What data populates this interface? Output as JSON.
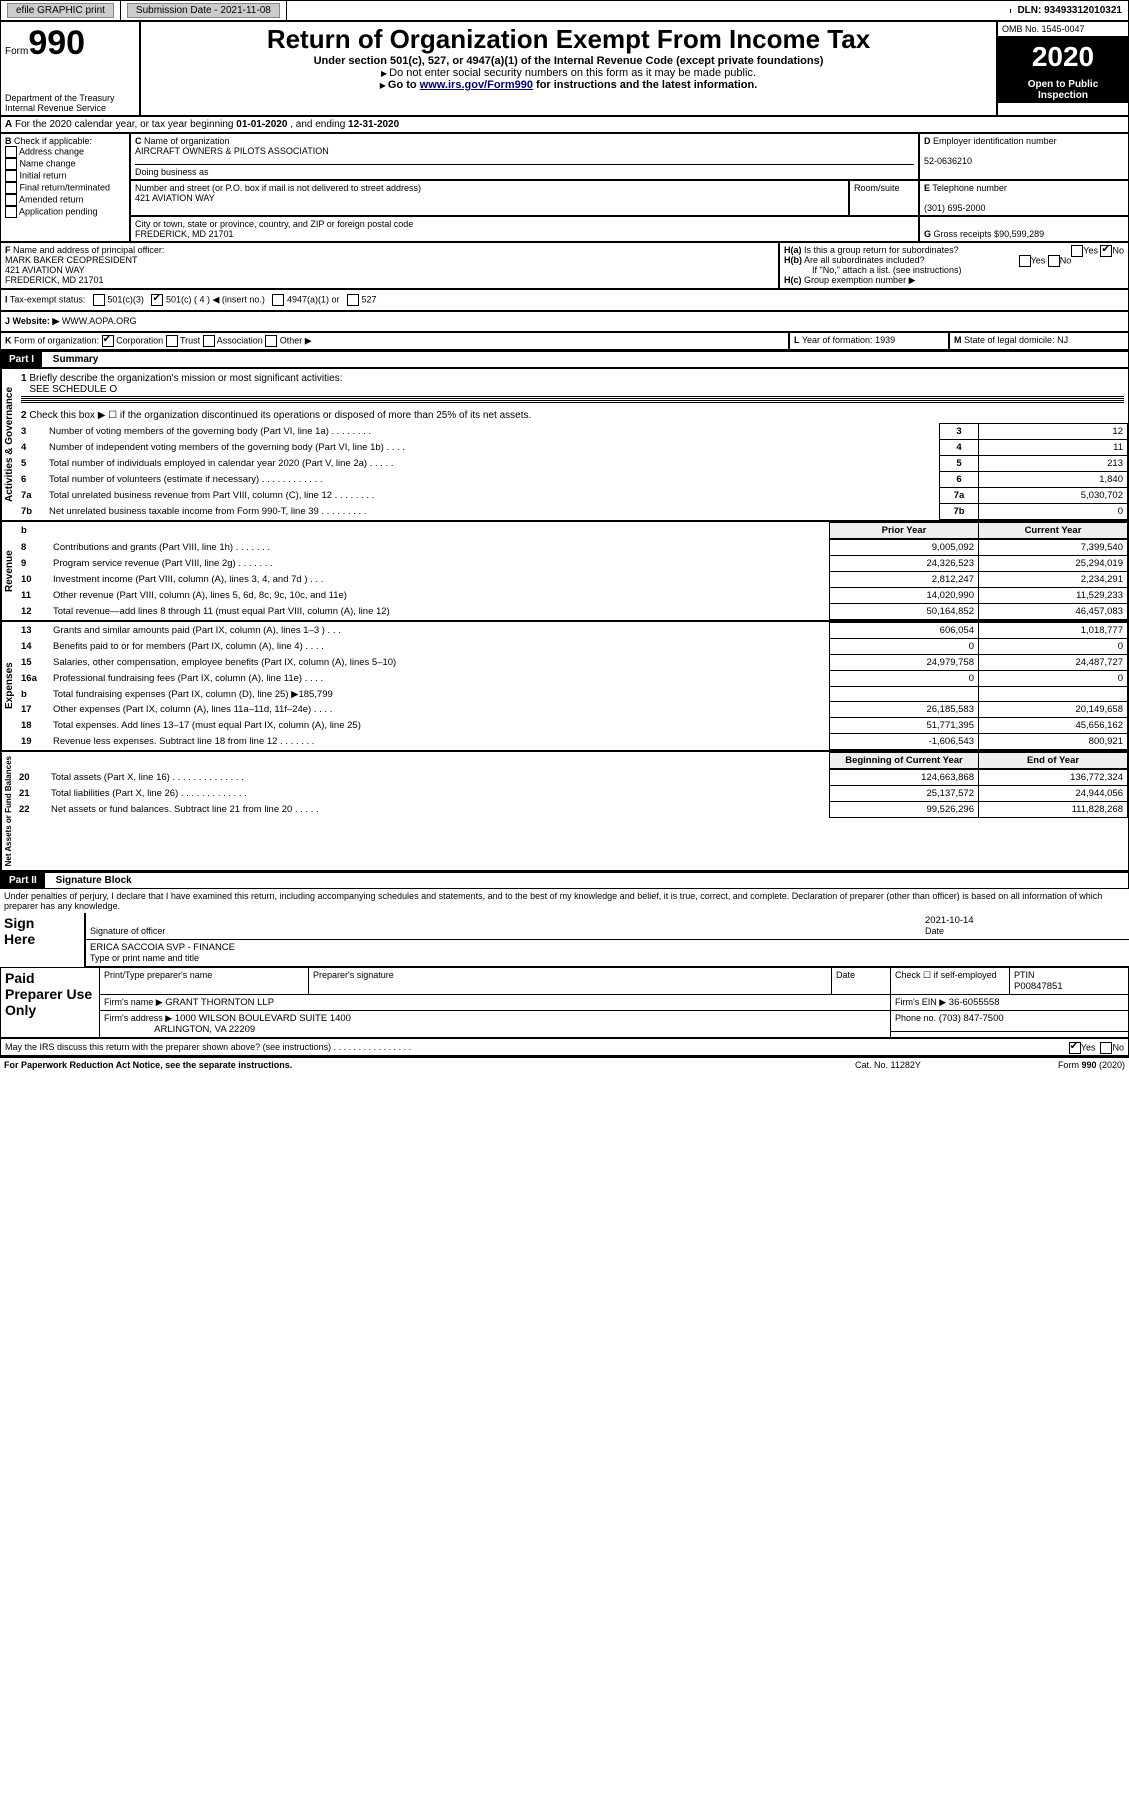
{
  "top": {
    "efile": "efile GRAPHIC print",
    "submission_label": "Submission Date - ",
    "submission_date": "2021-11-08",
    "dln_label": "DLN: ",
    "dln": "93493312010321"
  },
  "header": {
    "form_label": "Form",
    "form_no": "990",
    "dept": "Department of the Treasury\nInternal Revenue Service",
    "title": "Return of Organization Exempt From Income Tax",
    "subtitle": "Under section 501(c), 527, or 4947(a)(1) of the Internal Revenue Code (except private foundations)",
    "note1": "Do not enter social security numbers on this form as it may be made public.",
    "note2_pre": "Go to ",
    "note2_link": "www.irs.gov/Form990",
    "note2_post": " for instructions and the latest information.",
    "omb": "OMB No. 1545-0047",
    "year": "2020",
    "inspection": "Open to Public Inspection"
  },
  "A": {
    "text": "For the 2020 calendar year, or tax year beginning ",
    "begin": "01-01-2020",
    "mid": " , and ending ",
    "end": "12-31-2020"
  },
  "B": {
    "label": "Check if applicable:",
    "items": [
      "Address change",
      "Name change",
      "Initial return",
      "Final return/terminated",
      "Amended return",
      "Application pending"
    ]
  },
  "C": {
    "name_label": "Name of organization",
    "name": "AIRCRAFT OWNERS & PILOTS ASSOCIATION",
    "dba_label": "Doing business as",
    "street_label": "Number and street (or P.O. box if mail is not delivered to street address)",
    "room_label": "Room/suite",
    "street": "421 AVIATION WAY",
    "city_label": "City or town, state or province, country, and ZIP or foreign postal code",
    "city": "FREDERICK, MD  21701"
  },
  "D": {
    "label": "Employer identification number",
    "value": "52-0636210"
  },
  "E": {
    "label": "Telephone number",
    "value": "(301) 695-2000"
  },
  "G": {
    "label": "Gross receipts $",
    "value": "90,599,289"
  },
  "F": {
    "label": "Name and address of principal officer:",
    "name": "MARK BAKER CEOPRESIDENT",
    "street": "421 AVIATION WAY",
    "city": "FREDERICK, MD  21701"
  },
  "H": {
    "a": "Is this a group return for subordinates?",
    "b": "Are all subordinates included?",
    "b_note": "If \"No,\" attach a list. (see instructions)",
    "c": "Group exemption number ▶",
    "yes": "Yes",
    "no": "No"
  },
  "I": {
    "label": "Tax-exempt status:",
    "o1": "501(c)(3)",
    "o2": "501(c) ( 4 ) ◀ (insert no.)",
    "o3": "4947(a)(1) or",
    "o4": "527"
  },
  "J": {
    "label": "Website: ▶",
    "value": "WWW.AOPA.ORG"
  },
  "K": {
    "label": "Form of organization:",
    "o1": "Corporation",
    "o2": "Trust",
    "o3": "Association",
    "o4": "Other ▶"
  },
  "L": {
    "label": "Year of formation:",
    "value": "1939"
  },
  "M": {
    "label": "State of legal domicile:",
    "value": "NJ"
  },
  "part1": {
    "label": "Part I",
    "title": "Summary",
    "side_ag": "Activities & Governance",
    "side_rev": "Revenue",
    "side_exp": "Expenses",
    "side_na": "Net Assets or Fund Balances",
    "l1": "Briefly describe the organization's mission or most significant activities:",
    "l1_val": "SEE SCHEDULE O",
    "l2": "Check this box ▶ ☐  if the organization discontinued its operations or disposed of more than 25% of its net assets.",
    "hdr_prior": "Prior Year",
    "hdr_current": "Current Year",
    "hdr_boy": "Beginning of Current Year",
    "hdr_eoy": "End of Year",
    "rows_ag": [
      {
        "n": "3",
        "t": "Number of voting members of the governing body (Part VI, line 1a)  .    .    .    .    .    .    .    .",
        "v": "12"
      },
      {
        "n": "4",
        "t": "Number of independent voting members of the governing body (Part VI, line 1b)  .    .    .    .",
        "v": "11"
      },
      {
        "n": "5",
        "t": "Total number of individuals employed in calendar year 2020 (Part V, line 2a)  .    .    .    .    .",
        "v": "213"
      },
      {
        "n": "6",
        "t": "Total number of volunteers (estimate if necessary)   .    .    .    .    .    .    .    .    .    .    .    .",
        "v": "1,840"
      },
      {
        "n": "7a",
        "t": "Total unrelated business revenue from Part VIII, column (C), line 12  .    .    .    .    .    .    .    .",
        "v": "5,030,702"
      },
      {
        "n": "7b",
        "t": "Net unrelated business taxable income from Form 990-T, line 39   .    .    .    .    .    .    .    .    .",
        "v": "0"
      }
    ],
    "rows_rev": [
      {
        "n": "8",
        "t": "Contributions and grants (Part VIII, line 1h)   .    .    .    .    .    .    .",
        "p": "9,005,092",
        "c": "7,399,540"
      },
      {
        "n": "9",
        "t": "Program service revenue (Part VIII, line 2g)   .    .    .    .    .    .    .",
        "p": "24,326,523",
        "c": "25,294,019"
      },
      {
        "n": "10",
        "t": "Investment income (Part VIII, column (A), lines 3, 4, and 7d )  .    .    .",
        "p": "2,812,247",
        "c": "2,234,291"
      },
      {
        "n": "11",
        "t": "Other revenue (Part VIII, column (A), lines 5, 6d, 8c, 9c, 10c, and 11e)",
        "p": "14,020,990",
        "c": "11,529,233"
      },
      {
        "n": "12",
        "t": "Total revenue—add lines 8 through 11 (must equal Part VIII, column (A), line 12)",
        "p": "50,164,852",
        "c": "46,457,083"
      }
    ],
    "rows_exp": [
      {
        "n": "13",
        "t": "Grants and similar amounts paid (Part IX, column (A), lines 1–3 )  .    .    .",
        "p": "606,054",
        "c": "1,018,777"
      },
      {
        "n": "14",
        "t": "Benefits paid to or for members (Part IX, column (A), line 4)  .    .    .    .",
        "p": "0",
        "c": "0"
      },
      {
        "n": "15",
        "t": "Salaries, other compensation, employee benefits (Part IX, column (A), lines 5–10)",
        "p": "24,979,758",
        "c": "24,487,727"
      },
      {
        "n": "16a",
        "t": "Professional fundraising fees (Part IX, column (A), line 11e)  .    .    .    .",
        "p": "0",
        "c": "0"
      },
      {
        "n": "b",
        "t": "Total fundraising expenses (Part IX, column (D), line 25) ▶185,799",
        "p": "",
        "c": ""
      },
      {
        "n": "17",
        "t": "Other expenses (Part IX, column (A), lines 11a–11d, 11f–24e)  .    .    .    .",
        "p": "26,185,583",
        "c": "20,149,658"
      },
      {
        "n": "18",
        "t": "Total expenses. Add lines 13–17 (must equal Part IX, column (A), line 25)",
        "p": "51,771,395",
        "c": "45,656,162"
      },
      {
        "n": "19",
        "t": "Revenue less expenses. Subtract line 18 from line 12  .    .    .    .    .    .    .",
        "p": "-1,606,543",
        "c": "800,921"
      }
    ],
    "rows_na": [
      {
        "n": "20",
        "t": "Total assets (Part X, line 16)  .    .    .    .    .    .    .    .    .    .    .    .    .    .",
        "p": "124,663,868",
        "c": "136,772,324"
      },
      {
        "n": "21",
        "t": "Total liabilities (Part X, line 26)  .    .    .    .    .    .    .    .    .    .    .    .    .",
        "p": "25,137,572",
        "c": "24,944,056"
      },
      {
        "n": "22",
        "t": "Net assets or fund balances. Subtract line 21 from line 20  .    .    .    .    .",
        "p": "99,526,296",
        "c": "111,828,268"
      }
    ]
  },
  "part2": {
    "label": "Part II",
    "title": "Signature Block",
    "decl": "Under penalties of perjury, I declare that I have examined this return, including accompanying schedules and statements, and to the best of my knowledge and belief, it is true, correct, and complete. Declaration of preparer (other than officer) is based on all information of which preparer has any knowledge.",
    "sign_here": "Sign Here",
    "sig_officer": "Signature of officer",
    "date": "Date",
    "date_val": "2021-10-14",
    "name_title": "ERICA SACCOIA  SVP - FINANCE",
    "type_name": "Type or print name and title",
    "paid": "Paid Preparer Use Only",
    "prep_name_label": "Print/Type preparer's name",
    "prep_sig_label": "Preparer's signature",
    "check_if": "Check ☐ if self-employed",
    "ptin_label": "PTIN",
    "ptin": "P00847851",
    "firm_name_label": "Firm's name  ▶",
    "firm_name": "GRANT THORNTON LLP",
    "firm_ein_label": "Firm's EIN ▶",
    "firm_ein": "36-6055558",
    "firm_addr_label": "Firm's address ▶",
    "firm_addr1": "1000 WILSON BOULEVARD SUITE 1400",
    "firm_addr2": "ARLINGTON, VA  22209",
    "phone_label": "Phone no.",
    "phone": "(703) 847-7500",
    "discuss": "May the IRS discuss this return with the preparer shown above? (see instructions)   .    .    .    .    .    .    .    .    .    .    .    .    .    .    .    ."
  },
  "footer": {
    "left": "For Paperwork Reduction Act Notice, see the separate instructions.",
    "mid": "Cat. No. 11282Y",
    "right": "Form 990 (2020)"
  }
}
